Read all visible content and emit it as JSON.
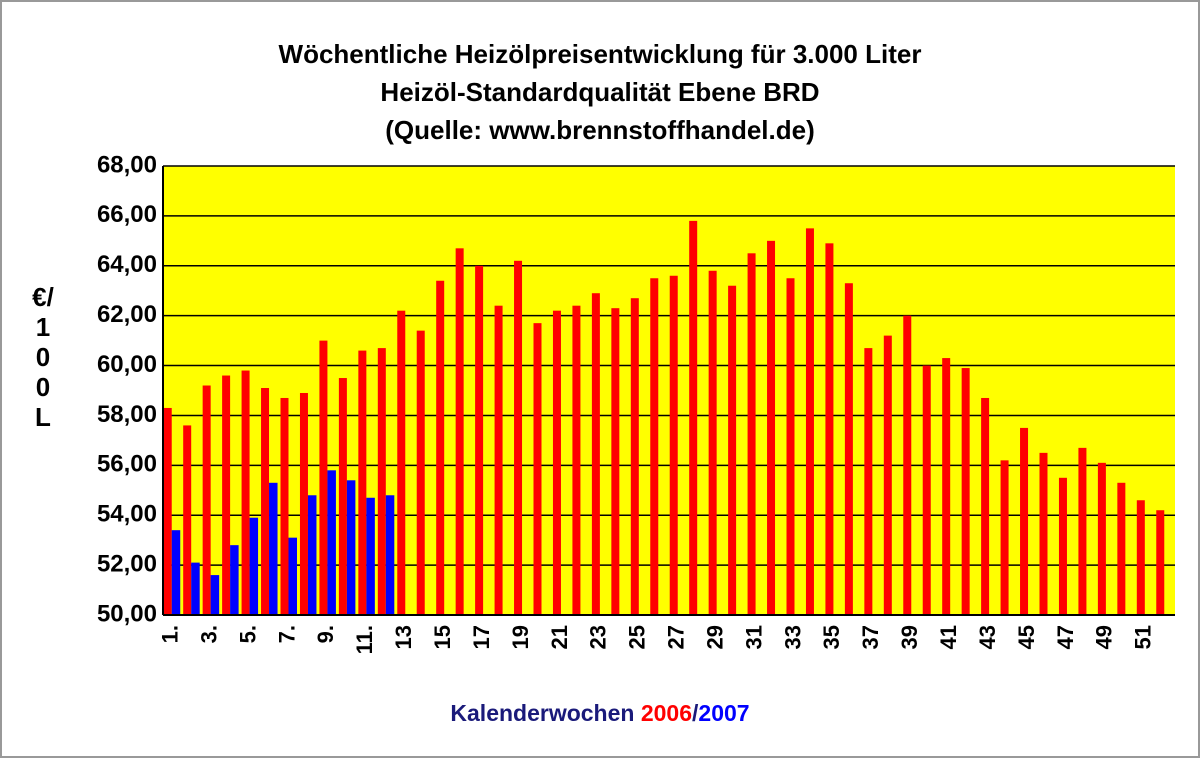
{
  "chart_data": {
    "type": "bar",
    "title": [
      "Wöchentliche Heizölpreisentwicklung für 3.000 Liter",
      "Heizöl-Standardqualität Ebene BRD",
      "(Quelle: www.brennstoffhandel.de)"
    ],
    "ylabel": "€/100L",
    "xlabel": "Kalenderwochen",
    "legend_separator": "/",
    "categories": [
      "1.",
      null,
      "3.",
      null,
      "5.",
      null,
      "7.",
      null,
      "9.",
      null,
      "11.",
      null,
      "13",
      null,
      "15",
      null,
      "17",
      null,
      "19",
      null,
      "21",
      null,
      "23",
      null,
      "25",
      null,
      "27",
      null,
      "29",
      null,
      "31",
      null,
      "33",
      null,
      "35",
      null,
      "37",
      null,
      "39",
      null,
      "41",
      null,
      "43",
      null,
      "45",
      null,
      "47",
      null,
      "49",
      null,
      "51",
      null
    ],
    "series": [
      {
        "name": "2006",
        "color": "#ff0000",
        "values": [
          58.3,
          57.6,
          59.2,
          59.6,
          59.8,
          59.1,
          58.7,
          58.9,
          61.0,
          59.5,
          60.6,
          60.7,
          62.2,
          61.4,
          63.4,
          64.7,
          64.0,
          62.4,
          64.2,
          61.7,
          62.2,
          62.4,
          62.9,
          62.3,
          62.7,
          63.5,
          63.6,
          65.8,
          63.8,
          63.2,
          64.5,
          65.0,
          63.5,
          65.5,
          64.9,
          63.3,
          60.7,
          61.2,
          62.0,
          60.0,
          60.3,
          59.9,
          58.7,
          56.2,
          57.5,
          56.5,
          55.5,
          56.7,
          56.1,
          55.3,
          54.6,
          54.2
        ]
      },
      {
        "name": "2007",
        "color": "#0000ff",
        "values": [
          53.4,
          52.1,
          51.6,
          52.8,
          53.9,
          55.3,
          53.1,
          54.8,
          55.8,
          55.4,
          54.7,
          54.8,
          null,
          null,
          null,
          null,
          null,
          null,
          null,
          null,
          null,
          null,
          null,
          null,
          null,
          null,
          null,
          null,
          null,
          null,
          null,
          null,
          null,
          null,
          null,
          null,
          null,
          null,
          null,
          null,
          null,
          null,
          null,
          null,
          null,
          null,
          null,
          null,
          null,
          null,
          null,
          null
        ]
      }
    ],
    "ylim": [
      50,
      68
    ],
    "yticks": [
      {
        "value": 50,
        "label": "50,00"
      },
      {
        "value": 52,
        "label": "52,00"
      },
      {
        "value": 54,
        "label": "54,00"
      },
      {
        "value": 56,
        "label": "56,00"
      },
      {
        "value": 58,
        "label": "58,00"
      },
      {
        "value": 60,
        "label": "60,00"
      },
      {
        "value": 62,
        "label": "62,00"
      },
      {
        "value": 64,
        "label": "64,00"
      },
      {
        "value": 66,
        "label": "66,00"
      },
      {
        "value": 68,
        "label": "68,00"
      }
    ],
    "grid": true
  }
}
